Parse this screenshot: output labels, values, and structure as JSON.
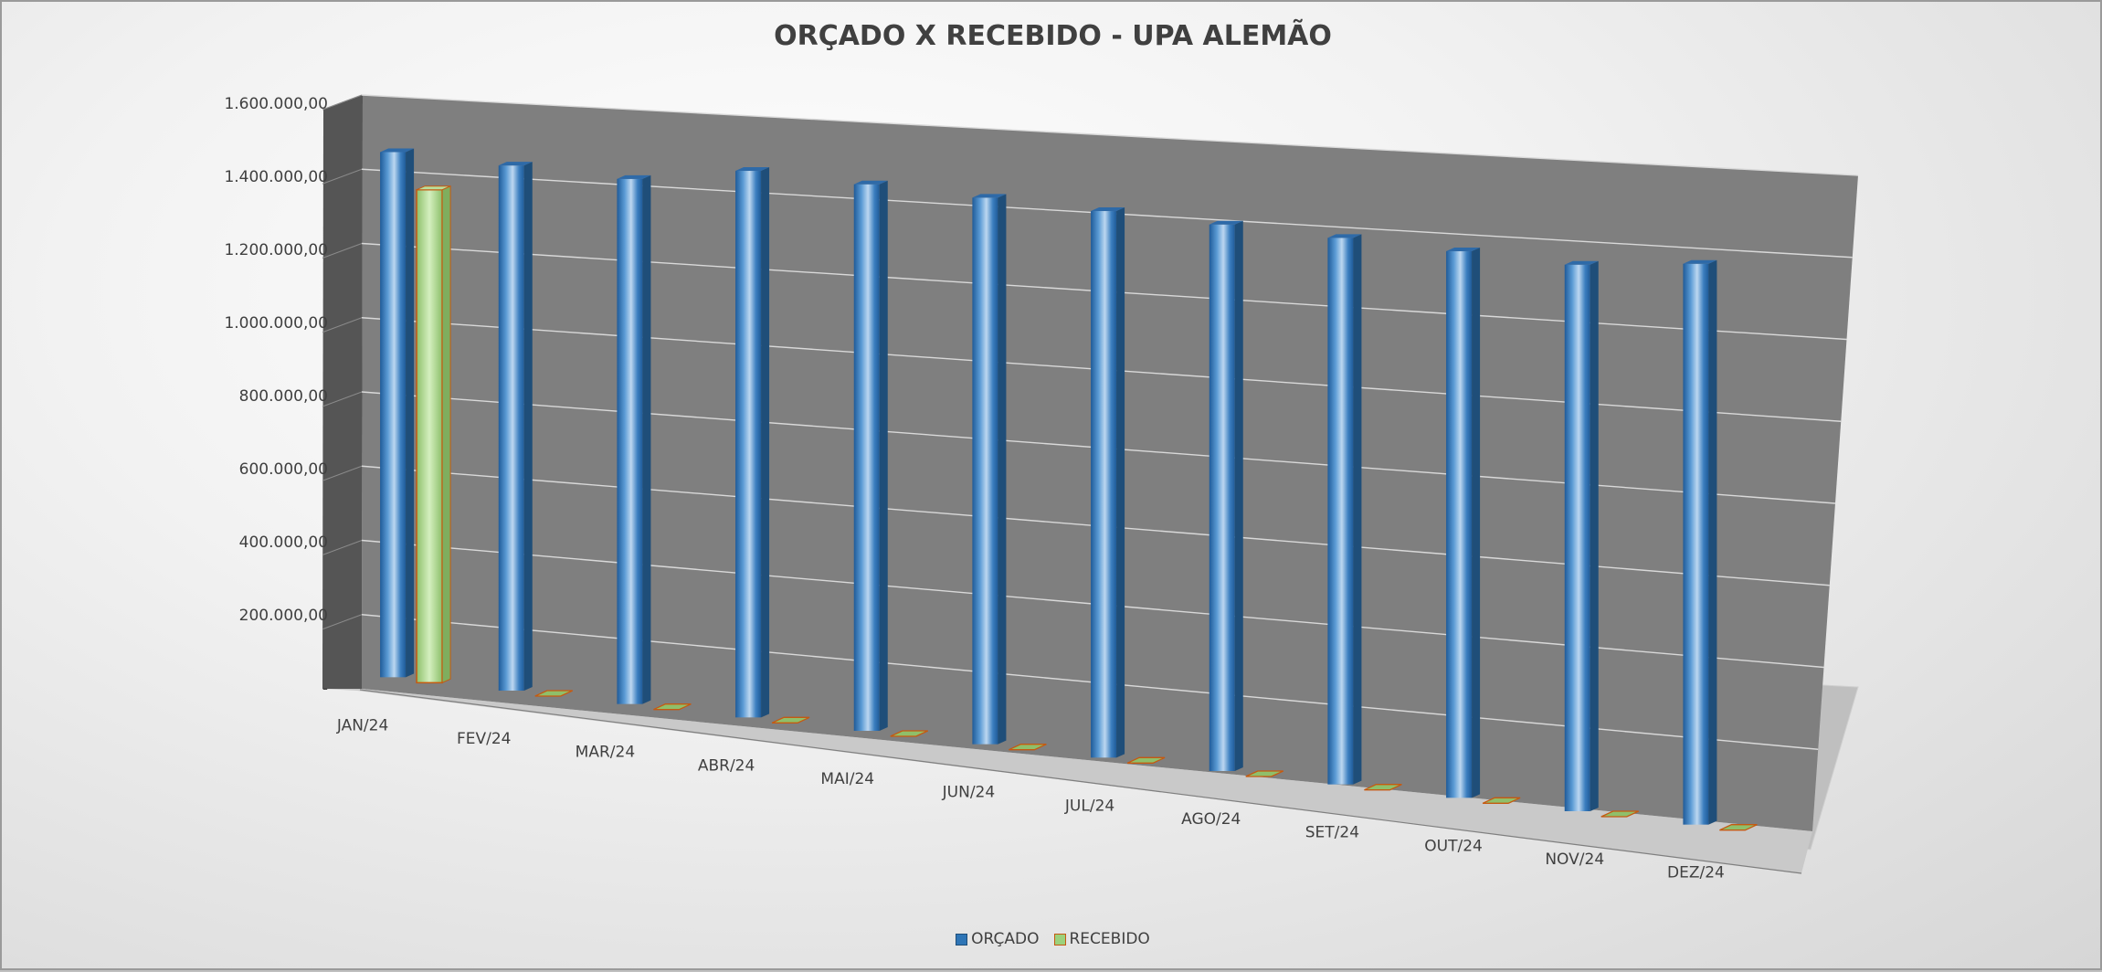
{
  "chart_data": {
    "type": "bar",
    "title": "ORÇADO X RECEBIDO - UPA ALEMÃO",
    "categories": [
      "JAN/24",
      "FEV/24",
      "MAR/24",
      "ABR/24",
      "MAI/24",
      "JUN/24",
      "JUL/24",
      "AGO/24",
      "SET/24",
      "OUT/24",
      "NOV/24",
      "DEZ/24"
    ],
    "series": [
      {
        "name": "ORÇADO",
        "color": "#2e75b6",
        "values": [
          1470000,
          1470000,
          1470000,
          1530000,
          1530000,
          1530000,
          1530000,
          1530000,
          1530000,
          1530000,
          1530000,
          1570000
        ]
      },
      {
        "name": "RECEBIDO",
        "color": "#9bd17c",
        "values": [
          1380000,
          0,
          0,
          0,
          0,
          0,
          0,
          0,
          0,
          0,
          0,
          0
        ]
      }
    ],
    "y_tick_labels": [
      "-",
      "200.000,00",
      "400.000,00",
      "600.000,00",
      "800.000,00",
      "1.000.000,00",
      "1.200.000,00",
      "1.400.000,00",
      "1.600.000,00"
    ],
    "ylim": [
      0,
      1600000
    ],
    "grid": true,
    "legend_position": "bottom"
  }
}
